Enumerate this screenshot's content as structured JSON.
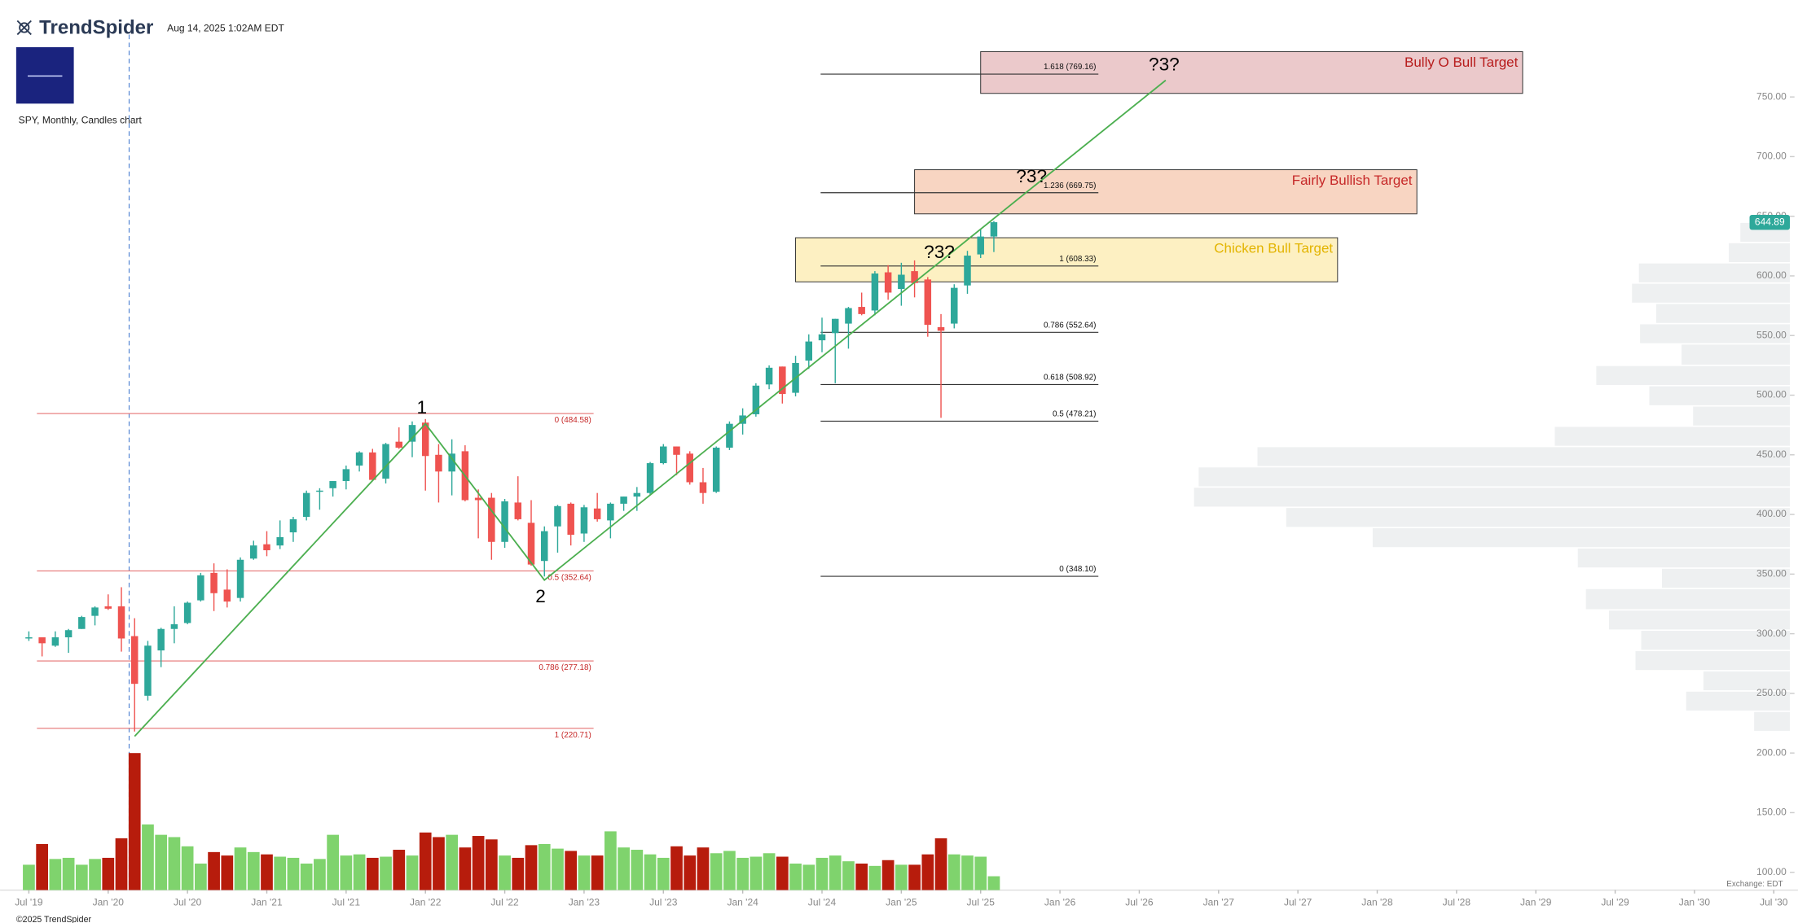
{
  "chart_data": {
    "type": "candlestick",
    "brand": "TrendSpider",
    "timestamp": "Aug 14, 2025 1:02AM EDT",
    "chart_label": "SPY, Monthly, Candles chart",
    "copyright": "©2025 TrendSpider",
    "exchange": "Exchange: EDT",
    "x": [
      "2019-07",
      "2019-08",
      "2019-09",
      "2019-10",
      "2019-11",
      "2019-12",
      "2020-01",
      "2020-02",
      "2020-03",
      "2020-04",
      "2020-05",
      "2020-06",
      "2020-07",
      "2020-08",
      "2020-09",
      "2020-10",
      "2020-11",
      "2020-12",
      "2021-01",
      "2021-02",
      "2021-03",
      "2021-04",
      "2021-05",
      "2021-06",
      "2021-07",
      "2021-08",
      "2021-09",
      "2021-10",
      "2021-11",
      "2021-12",
      "2022-01",
      "2022-02",
      "2022-03",
      "2022-04",
      "2022-05",
      "2022-06",
      "2022-07",
      "2022-08",
      "2022-09",
      "2022-10",
      "2022-11",
      "2022-12",
      "2023-01",
      "2023-02",
      "2023-03",
      "2023-04",
      "2023-05",
      "2023-06",
      "2023-07",
      "2023-08",
      "2023-09",
      "2023-10",
      "2023-11",
      "2023-12",
      "2024-01",
      "2024-02",
      "2024-03",
      "2024-04",
      "2024-05",
      "2024-06",
      "2024-07",
      "2024-08",
      "2024-09",
      "2024-10",
      "2024-11",
      "2024-12",
      "2025-01",
      "2025-02",
      "2025-03",
      "2025-04",
      "2025-05",
      "2025-06",
      "2025-07",
      "2025-08"
    ],
    "open": [
      296,
      297,
      290,
      297,
      304,
      315,
      323,
      323,
      298,
      248,
      286,
      304,
      309,
      328,
      351,
      337,
      330,
      363,
      375,
      374,
      385,
      398,
      419,
      422,
      428,
      441,
      452,
      430,
      461,
      461,
      477,
      450,
      436,
      453,
      414,
      414,
      377,
      410,
      393,
      361,
      390,
      409,
      384,
      405,
      395,
      409,
      415,
      418,
      443,
      457,
      451,
      427,
      419,
      456,
      476,
      484,
      509,
      524,
      502,
      529,
      546,
      552,
      560,
      574,
      571,
      603,
      589,
      604,
      597,
      557,
      560,
      592,
      618,
      633
    ],
    "high": [
      302,
      297,
      302,
      304,
      315,
      323,
      333,
      339,
      313,
      294,
      305,
      323,
      327,
      351,
      359,
      354,
      364,
      378,
      386,
      395,
      398,
      420,
      422,
      428,
      441,
      453,
      455,
      460,
      473,
      478,
      480,
      459,
      463,
      458,
      421,
      418,
      413,
      432,
      412,
      390,
      408,
      410,
      408,
      418,
      410,
      415,
      423,
      444,
      459,
      457,
      453,
      439,
      457,
      478,
      489,
      510,
      525,
      524,
      533,
      551,
      565,
      564,
      574,
      586,
      604,
      609,
      611,
      613,
      599,
      568,
      593,
      621,
      639,
      646
    ],
    "low": [
      294,
      281,
      289,
      284,
      304,
      307,
      320,
      285,
      218,
      244,
      272,
      292,
      308,
      327,
      319,
      322,
      327,
      362,
      365,
      371,
      377,
      395,
      404,
      415,
      421,
      436,
      428,
      426,
      455,
      448,
      420,
      410,
      416,
      411,
      380,
      362,
      372,
      395,
      357,
      348,
      368,
      374,
      377,
      394,
      380,
      403,
      403,
      416,
      442,
      433,
      425,
      409,
      418,
      454,
      467,
      482,
      505,
      493,
      499,
      522,
      536,
      510,
      539,
      567,
      567,
      580,
      575,
      582,
      549,
      481,
      556,
      585,
      615,
      620
    ],
    "close": [
      297,
      292,
      297,
      303,
      314,
      322,
      321,
      296,
      258,
      290,
      304,
      308,
      326,
      349,
      334,
      327,
      362,
      374,
      370,
      381,
      396,
      418,
      420,
      428,
      438,
      452,
      429,
      459,
      456,
      475,
      449,
      436,
      451,
      412,
      412,
      377,
      411,
      396,
      358,
      386,
      407,
      383,
      406,
      396,
      409,
      415,
      418,
      443,
      457,
      450,
      427,
      418,
      456,
      476,
      483,
      508,
      523,
      501,
      527,
      545,
      551,
      564,
      573,
      568,
      602,
      586,
      601,
      594,
      559,
      554,
      590,
      617,
      633,
      645
    ],
    "volume": [
      22,
      40,
      27,
      28,
      22,
      27,
      28,
      45,
      119,
      57,
      48,
      46,
      38,
      23,
      33,
      30,
      37,
      33,
      31,
      29,
      28,
      23,
      27,
      48,
      30,
      31,
      28,
      29,
      35,
      30,
      50,
      46,
      48,
      37,
      47,
      44,
      30,
      28,
      39,
      40,
      36,
      34,
      30,
      30,
      51,
      37,
      35,
      31,
      28,
      38,
      30,
      37,
      32,
      34,
      28,
      29,
      32,
      29,
      23,
      22,
      28,
      30,
      25,
      23,
      21,
      26,
      22,
      22,
      31,
      45,
      31,
      30,
      29,
      12
    ],
    "up_color": "#2ea89a",
    "down_color": "#ef5350",
    "volume_up_color": "#7fd36d",
    "volume_down_color": "#b71c0c",
    "ylim": [
      85.1,
      831.3
    ],
    "yticks": [
      {
        "value": 100,
        "label": "100.00"
      },
      {
        "value": 150,
        "label": "150.00"
      },
      {
        "value": 200,
        "label": "200.00"
      },
      {
        "value": 250,
        "label": "250.00"
      },
      {
        "value": 300,
        "label": "300.00"
      },
      {
        "value": 350,
        "label": "350.00"
      },
      {
        "value": 400,
        "label": "400.00"
      },
      {
        "value": 450,
        "label": "450.00"
      },
      {
        "value": 500,
        "label": "500.00"
      },
      {
        "value": 550,
        "label": "550.00"
      },
      {
        "value": 600,
        "label": "600.00"
      },
      {
        "value": 650,
        "label": "650.00"
      },
      {
        "value": 700,
        "label": "700.00"
      },
      {
        "value": 750,
        "label": "750.00"
      }
    ],
    "xticks": [
      {
        "value": "2019-07",
        "label": "Jul '19"
      },
      {
        "value": "2020-01",
        "label": "Jan '20"
      },
      {
        "value": "2020-07",
        "label": "Jul '20"
      },
      {
        "value": "2021-01",
        "label": "Jan '21"
      },
      {
        "value": "2021-07",
        "label": "Jul '21"
      },
      {
        "value": "2022-01",
        "label": "Jan '22"
      },
      {
        "value": "2022-07",
        "label": "Jul '22"
      },
      {
        "value": "2023-01",
        "label": "Jan '23"
      },
      {
        "value": "2023-07",
        "label": "Jul '23"
      },
      {
        "value": "2024-01",
        "label": "Jan '24"
      },
      {
        "value": "2024-07",
        "label": "Jul '24"
      },
      {
        "value": "2025-01",
        "label": "Jan '25"
      },
      {
        "value": "2025-07",
        "label": "Jul '25"
      },
      {
        "value": "2026-01",
        "label": "Jan '26"
      },
      {
        "value": "2026-07",
        "label": "Jul '26"
      },
      {
        "value": "2027-01",
        "label": "Jan '27"
      },
      {
        "value": "2027-07",
        "label": "Jul '27"
      },
      {
        "value": "2028-01",
        "label": "Jan '28"
      },
      {
        "value": "2028-07",
        "label": "Jul '28"
      },
      {
        "value": "2029-01",
        "label": "Jan '29"
      },
      {
        "value": "2029-07",
        "label": "Jul '29"
      },
      {
        "value": "2030-01",
        "label": "Jan '30"
      },
      {
        "value": "2030-07",
        "label": "Jul '30"
      }
    ],
    "last_price": 644.89,
    "fib_left": [
      {
        "label": "0 (484.58)",
        "price": 484.58
      },
      {
        "label": "0.5 (352.64)",
        "price": 352.64
      },
      {
        "label": "0.786 (277.18)",
        "price": 277.18
      },
      {
        "label": "1 (220.71)",
        "price": 220.71
      }
    ],
    "fib_right": [
      {
        "label": "1.618 (769.16)",
        "price": 769.16
      },
      {
        "label": "1.236 (669.75)",
        "price": 669.75
      },
      {
        "label": "1 (608.33)",
        "price": 608.33
      },
      {
        "label": "0.786 (552.64)",
        "price": 552.64
      },
      {
        "label": "0.618 (508.92)",
        "price": 508.92
      },
      {
        "label": "0.5 (478.21)",
        "price": 478.21
      },
      {
        "label": "0 (348.10)",
        "price": 348.1
      }
    ],
    "zones": [
      {
        "label": "Bully O Bull Target",
        "from": "2025-07",
        "to": "2028-12",
        "top": 788,
        "bottom": 753,
        "color": "#b71c1c",
        "fill": "#ebc9cb"
      },
      {
        "label": "Fairly Bullish Target",
        "from": "2025-02",
        "to": "2028-04",
        "top": 689,
        "bottom": 652,
        "color": "#c62828",
        "fill": "#f8d5c2"
      },
      {
        "label": "Chicken Bull Target",
        "from": "2024-05",
        "to": "2027-10",
        "top": 632,
        "bottom": 595,
        "color": "#e3b400",
        "fill": "#fdf0c2"
      }
    ],
    "trendline": {
      "x": [
        "2020-03",
        "2022-01",
        "2022-10",
        "2026-09"
      ],
      "y": [
        214,
        476,
        345,
        764
      ],
      "color": "#4caf50"
    },
    "wave_labels": [
      "1",
      "2",
      "?3?",
      "?3?",
      "?3?"
    ],
    "volume_profile": {
      "bins": [
        218,
        235,
        252,
        269,
        286,
        303,
        320,
        338,
        355,
        372,
        389,
        406,
        423,
        440,
        457,
        474,
        491,
        508,
        525,
        543,
        560,
        577,
        594,
        611,
        628,
        645
      ],
      "values": [
        31,
        90,
        75,
        134,
        129,
        157,
        177,
        111,
        184,
        362,
        437,
        517,
        513,
        462,
        204,
        84,
        122,
        168,
        94,
        130,
        116,
        137,
        131,
        53,
        43
      ]
    }
  }
}
